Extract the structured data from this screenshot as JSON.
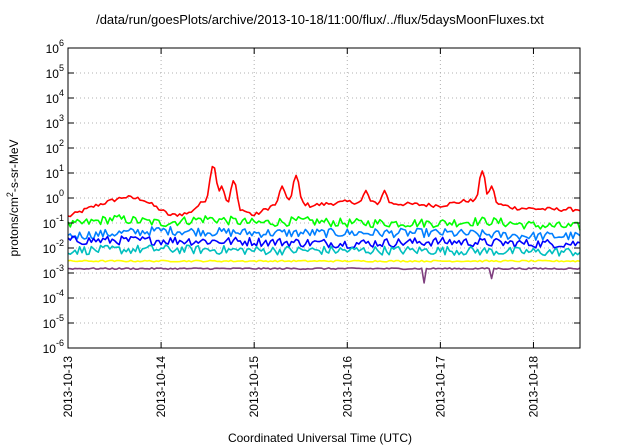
{
  "chart_data": {
    "type": "line",
    "title": "/data/run/goesPlots/archive/2013-10-18/11:00/flux/../flux/5daysMoonFluxes.txt",
    "xlabel": "Coordinated Universal Time (UTC)",
    "ylabel": {
      "base": "protons/cm",
      "sup": "2",
      "rest": "-s-sr-MeV"
    },
    "yscale": "log",
    "ylim_exp": [
      -6,
      6
    ],
    "y_ticks": [
      {
        "base": "10",
        "exp": "-6"
      },
      {
        "base": "10",
        "exp": "-5"
      },
      {
        "base": "10",
        "exp": "-4"
      },
      {
        "base": "10",
        "exp": "-3"
      },
      {
        "base": "10",
        "exp": "-2"
      },
      {
        "base": "10",
        "exp": "-1"
      },
      {
        "base": "10",
        "exp": "0"
      },
      {
        "base": "10",
        "exp": "1"
      },
      {
        "base": "10",
        "exp": "2"
      },
      {
        "base": "10",
        "exp": "3"
      },
      {
        "base": "10",
        "exp": "4"
      },
      {
        "base": "10",
        "exp": "5"
      },
      {
        "base": "10",
        "exp": "6"
      }
    ],
    "x_ticks": [
      "2013-10-13",
      "2013-10-14",
      "2013-10-15",
      "2013-10-16",
      "2013-10-17",
      "2013-10-18"
    ],
    "x_range_days": [
      0,
      5.5
    ],
    "grid": true,
    "series": [
      {
        "color": "#ff0000",
        "base": [
          [
            0,
            0.18
          ],
          [
            0.3,
            0.5
          ],
          [
            0.6,
            1.1
          ],
          [
            0.8,
            0.9
          ],
          [
            1.1,
            0.2
          ],
          [
            1.3,
            0.25
          ],
          [
            1.5,
            1.0
          ],
          [
            1.7,
            0.6
          ],
          [
            1.9,
            0.3
          ],
          [
            2.0,
            0.2
          ],
          [
            2.2,
            0.5
          ],
          [
            2.4,
            0.9
          ],
          [
            2.6,
            0.5
          ],
          [
            3.0,
            0.7
          ],
          [
            3.5,
            0.6
          ],
          [
            4.0,
            0.5
          ],
          [
            4.3,
            0.8
          ],
          [
            4.5,
            0.7
          ],
          [
            4.8,
            0.4
          ],
          [
            5.2,
            0.35
          ],
          [
            5.5,
            0.35
          ]
        ],
        "spikes": [
          [
            1.56,
            20
          ],
          [
            1.65,
            3
          ],
          [
            1.78,
            5
          ],
          [
            2.3,
            3
          ],
          [
            2.45,
            8
          ],
          [
            3.2,
            2
          ],
          [
            3.4,
            2
          ],
          [
            4.45,
            12
          ],
          [
            4.55,
            3
          ]
        ]
      },
      {
        "color": "#00ff00",
        "base": [
          [
            0,
            0.08
          ],
          [
            0.5,
            0.15
          ],
          [
            1.0,
            0.1
          ],
          [
            1.5,
            0.15
          ],
          [
            2.0,
            0.1
          ],
          [
            2.5,
            0.12
          ],
          [
            3.0,
            0.1
          ],
          [
            3.5,
            0.1
          ],
          [
            4.0,
            0.1
          ],
          [
            4.5,
            0.12
          ],
          [
            5.0,
            0.08
          ],
          [
            5.5,
            0.07
          ]
        ]
      },
      {
        "color": "#007fff",
        "base": [
          [
            0,
            0.03
          ],
          [
            1.0,
            0.05
          ],
          [
            2.0,
            0.04
          ],
          [
            3.0,
            0.04
          ],
          [
            4.0,
            0.04
          ],
          [
            5.0,
            0.03
          ],
          [
            5.5,
            0.03
          ]
        ]
      },
      {
        "color": "#0000ff",
        "base": [
          [
            0,
            0.02
          ],
          [
            1.0,
            0.02
          ],
          [
            2.0,
            0.018
          ],
          [
            3.0,
            0.015
          ],
          [
            4.0,
            0.018
          ],
          [
            5.0,
            0.015
          ],
          [
            5.5,
            0.015
          ]
        ]
      },
      {
        "color": "#00bfbf",
        "base": [
          [
            0,
            0.008
          ],
          [
            1.0,
            0.009
          ],
          [
            2.0,
            0.008
          ],
          [
            3.0,
            0.008
          ],
          [
            4.0,
            0.008
          ],
          [
            5.0,
            0.007
          ],
          [
            5.5,
            0.007
          ]
        ]
      },
      {
        "color": "#ffff00",
        "base": [
          [
            0,
            0.003
          ],
          [
            5.5,
            0.003
          ]
        ]
      },
      {
        "color": "#7f3f7f",
        "base": [
          [
            0,
            0.0015
          ],
          [
            5.5,
            0.0015
          ]
        ],
        "dips": [
          [
            3.82,
            0.0004
          ],
          [
            4.55,
            0.0006
          ]
        ]
      }
    ]
  }
}
